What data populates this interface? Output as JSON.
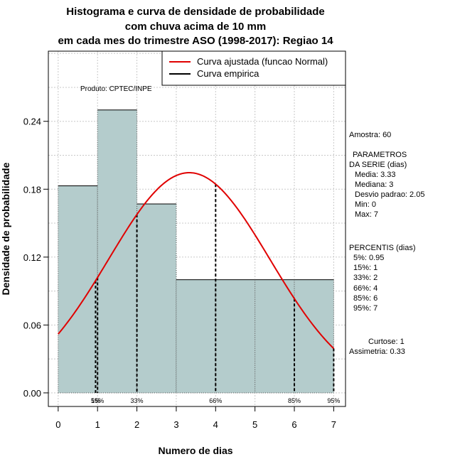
{
  "chart_data": {
    "type": "bar",
    "title_lines": [
      "Histograma e curva de densidade de probabilidade",
      "com chuva acima de 10 mm",
      "em cada mes do trimestre ASO (1998-2017): Regiao 14"
    ],
    "xlabel": "Numero de dias",
    "ylabel": "Densidade de probabilidade",
    "xlim": [
      -0.25,
      7.3
    ],
    "ylim": [
      -0.012,
      0.302
    ],
    "x_ticks": [
      0,
      1,
      2,
      3,
      4,
      5,
      6,
      7
    ],
    "y_ticks": [
      0.0,
      0.06,
      0.12,
      0.18,
      0.24
    ],
    "y_tick_labels": [
      "0.00",
      "0.06",
      "0.12",
      "0.18",
      "0.24"
    ],
    "bins": [
      {
        "x0": 0,
        "x1": 1,
        "density": 0.183
      },
      {
        "x0": 1,
        "x1": 2,
        "density": 0.25
      },
      {
        "x0": 2,
        "x1": 3,
        "density": 0.167
      },
      {
        "x0": 3,
        "x1": 4,
        "density": 0.1
      },
      {
        "x0": 4,
        "x1": 5,
        "density": 0.1
      },
      {
        "x0": 5,
        "x1": 6,
        "density": 0.1
      },
      {
        "x0": 6,
        "x1": 7,
        "density": 0.1
      }
    ],
    "normal_fit": {
      "mean": 3.33,
      "sd": 2.05,
      "x_range": [
        0,
        7
      ]
    },
    "percentile_markers": [
      {
        "label": "5%",
        "x": 0.95
      },
      {
        "label": "15%",
        "x": 1
      },
      {
        "label": "33%",
        "x": 2
      },
      {
        "label": "66%",
        "x": 4
      },
      {
        "label": "85%",
        "x": 6
      },
      {
        "label": "95%",
        "x": 7
      }
    ],
    "legend": [
      {
        "label": "Curva ajustada (funcao Normal)",
        "color": "#e00000"
      },
      {
        "label": "Curva empirica",
        "color": "#000000"
      }
    ],
    "legend_position": "top-right",
    "grid": true,
    "colors": {
      "bar_fill": "#b4cccc",
      "curve": "#e00000"
    },
    "product_label": "Produto: CPTEC/INPE",
    "side_text": [
      "Amostra: 60",
      "PARAMETROS",
      "DA SERIE (dias)",
      "Media: 3.33",
      "Mediana: 3",
      "Desvio padrao: 2.05",
      "Min: 0",
      "Max: 7",
      "PERCENTIS (dias)",
      "5%: 0.95",
      "15%: 1",
      "33%: 2",
      "66%: 4",
      "85%: 6",
      "95%: 7",
      "Curtose: 1",
      "Assimetria: 0.33"
    ]
  }
}
